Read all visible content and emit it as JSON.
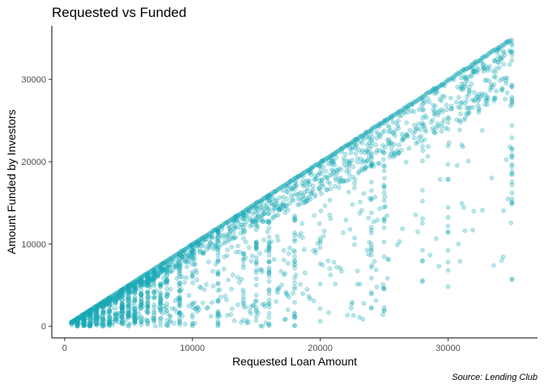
{
  "chart_data": {
    "type": "scatter",
    "title": "Requested vs Funded",
    "xlabel": "Requested Loan Amount",
    "ylabel": "Amount Funded by Investors",
    "caption": "Source: Lending Club",
    "xlim": [
      -1000,
      37000
    ],
    "ylim": [
      -1400,
      36500
    ],
    "xticks": [
      0,
      10000,
      20000,
      30000
    ],
    "yticks": [
      0,
      10000,
      20000,
      30000
    ],
    "grid": false,
    "legend": "none",
    "point_color": "#1ba8b5",
    "point_opacity": 0.3,
    "series": [
      {
        "description_of_pattern": "dense diagonal edge y=x from 500 to 35000; vertical streaks at common amounts",
        "diagonal_range": [
          500,
          35000
        ],
        "vertical_streaks_x": [
          1000,
          1500,
          2000,
          2500,
          3000,
          3500,
          4000,
          4500,
          5000,
          5500,
          6000,
          6500,
          7000,
          7500,
          8000,
          9000,
          10000,
          12000,
          14000,
          15000,
          16000,
          18000,
          20000,
          24000,
          25000,
          28000,
          30000,
          35000
        ],
        "values": []
      }
    ]
  }
}
